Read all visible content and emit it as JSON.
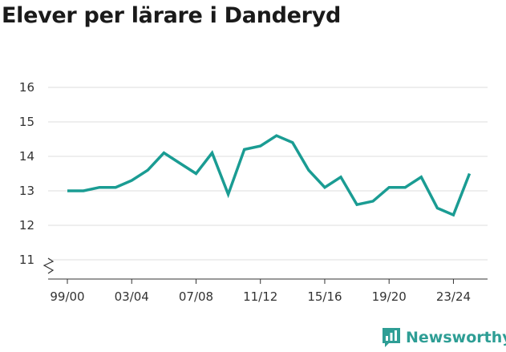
{
  "title": "Elever per lärare i Danderyd",
  "brand": {
    "name": "Newsworthy",
    "icon": "newsworthy-logo-icon"
  },
  "colors": {
    "line": "#1a9c93",
    "grid": "#dddddd",
    "axis": "#333333",
    "brand": "#2e9e95"
  },
  "chart_data": {
    "type": "line",
    "title": "Elever per lärare i Danderyd",
    "xlabel": "",
    "ylabel": "",
    "x": [
      "99/00",
      "00/01",
      "01/02",
      "02/03",
      "03/04",
      "04/05",
      "05/06",
      "06/07",
      "07/08",
      "08/09",
      "09/10",
      "10/11",
      "11/12",
      "12/13",
      "13/14",
      "14/15",
      "15/16",
      "16/17",
      "17/18",
      "18/19",
      "19/20",
      "20/21",
      "21/22",
      "22/23",
      "23/24",
      "24/25"
    ],
    "x_tick_labels": [
      "99/00",
      "03/04",
      "07/08",
      "11/12",
      "15/16",
      "19/20",
      "23/24"
    ],
    "series": [
      {
        "values": [
          13.0,
          13.0,
          13.1,
          13.1,
          13.3,
          13.6,
          14.1,
          13.8,
          13.5,
          14.1,
          12.9,
          14.2,
          14.3,
          14.6,
          14.4,
          13.6,
          13.1,
          13.4,
          12.6,
          12.7,
          13.1,
          13.1,
          13.4,
          12.5,
          12.3,
          13.5
        ]
      }
    ],
    "y_ticks": [
      11,
      12,
      13,
      14,
      15,
      16
    ],
    "ylim": [
      10.5,
      16.3
    ],
    "y_axis_break": true,
    "grid": true,
    "legend": "none"
  }
}
